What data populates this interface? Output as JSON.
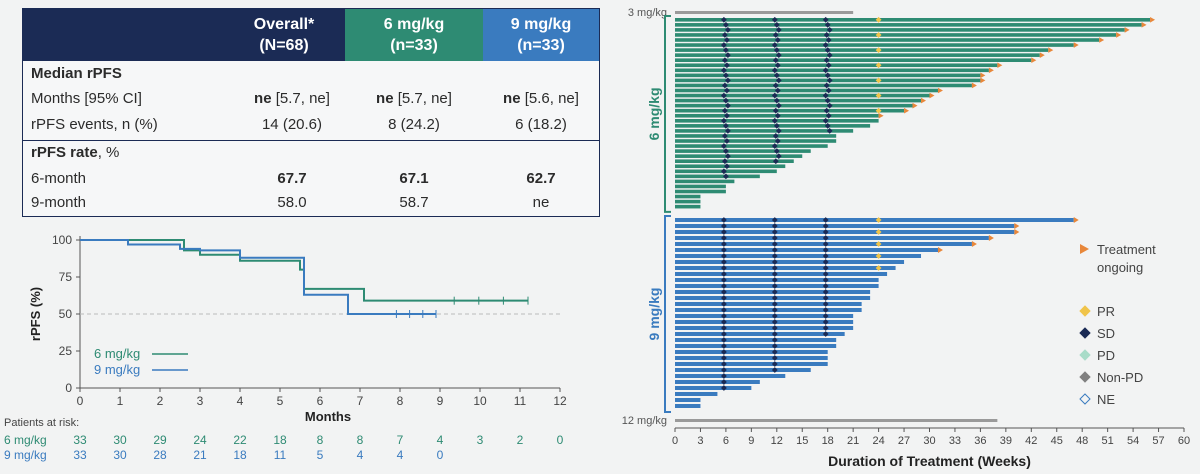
{
  "table": {
    "headers": [
      {
        "line1": "Overall*",
        "line2": "(N=68)",
        "color": "#1b2b55"
      },
      {
        "line1": "6 mg/kg",
        "line2": "(n=33)",
        "color": "#2e8b73"
      },
      {
        "line1": "9 mg/kg",
        "line2": "(n=33)",
        "color": "#3a7bbf"
      }
    ],
    "section1": "Median rPFS",
    "row_months": {
      "label": "Months [95% CI]",
      "v1b": "ne",
      "v1": " [5.7, ne]",
      "v2b": "ne",
      "v2": " [5.7, ne]",
      "v3b": "ne",
      "v3": " [5.6, ne]"
    },
    "row_events": {
      "label": "rPFS events, n (%)",
      "v1": "14 (20.6)",
      "v2": "8 (24.2)",
      "v3": "6 (18.2)"
    },
    "section2_bold": "rPFS rate",
    "section2_rest": ", %",
    "row_6m": {
      "label": "6-month",
      "v1": "67.7",
      "v2": "67.1",
      "v3": "62.7"
    },
    "row_9m": {
      "label": "9-month",
      "v1": "58.0",
      "v2": "58.7",
      "v3": "ne"
    }
  },
  "chart_data": [
    {
      "type": "line",
      "xlabel": "Months",
      "ylabel": "rPFS (%)",
      "xlim": [
        0,
        12
      ],
      "ylim": [
        0,
        100
      ],
      "xticks": [
        0,
        1,
        2,
        3,
        4,
        5,
        6,
        7,
        8,
        9,
        10,
        11,
        12
      ],
      "yticks": [
        0,
        25,
        50,
        75,
        100
      ],
      "reference_line": 50,
      "series": [
        {
          "name": "6 mg/kg",
          "color": "#2e8b73",
          "x": [
            0,
            2.6,
            2.6,
            3.0,
            3.0,
            4.0,
            4.0,
            5.5,
            5.5,
            5.6,
            5.6,
            7.1,
            7.1,
            11.2
          ],
          "y": [
            100,
            100,
            93,
            93,
            90,
            90,
            86,
            86,
            80,
            80,
            67,
            67,
            59,
            59
          ]
        },
        {
          "name": "9 mg/kg",
          "color": "#3a7bbf",
          "x": [
            0,
            1.2,
            1.2,
            2.5,
            2.5,
            3.0,
            3.0,
            4.0,
            4.0,
            5.6,
            5.6,
            6.7,
            6.7,
            8.9
          ],
          "y": [
            100,
            100,
            97,
            97,
            94,
            94,
            93,
            93,
            88,
            88,
            63,
            63,
            50,
            50
          ]
        }
      ],
      "risk_table": {
        "title": "Patients at risk:",
        "months": [
          0,
          1,
          2,
          3,
          4,
          5,
          6,
          7,
          8,
          9,
          10,
          11,
          12
        ],
        "rows": [
          {
            "name": "6 mg/kg",
            "values": [
              "33",
              "30",
              "29",
              "24",
              "22",
              "18",
              "8",
              "8",
              "7",
              "4",
              "3",
              "2",
              "0"
            ]
          },
          {
            "name": "9 mg/kg",
            "values": [
              "33",
              "30",
              "28",
              "21",
              "18",
              "11",
              "5",
              "4",
              "4",
              "0",
              "",
              "",
              ""
            ]
          }
        ]
      }
    },
    {
      "type": "bar",
      "orientation": "horizontal",
      "xlabel": "Duration of Treatment (Weeks)",
      "xlim": [
        0,
        60
      ],
      "xticks": [
        0,
        3,
        6,
        9,
        12,
        15,
        18,
        21,
        24,
        27,
        30,
        33,
        36,
        39,
        42,
        45,
        48,
        51,
        54,
        57,
        60
      ],
      "group_labels": [
        "3 mg/kg",
        "6 mg/kg",
        "9 mg/kg",
        "12 mg/kg"
      ],
      "groups": [
        {
          "name": "3 mg/kg",
          "color": "#9a9a9a",
          "durations": [
            21
          ]
        },
        {
          "name": "6 mg/kg",
          "color": "#2e8b73",
          "durations": [
            56,
            55,
            53,
            52,
            50,
            47,
            44,
            43,
            42,
            38,
            37,
            36,
            36,
            35,
            31,
            30,
            29,
            28,
            27,
            24,
            24,
            23,
            21,
            19,
            19,
            18,
            16,
            15,
            14,
            13,
            12,
            10,
            7,
            6,
            6,
            3,
            3,
            3
          ]
        },
        {
          "name": "9 mg/kg",
          "color": "#3a7bbf",
          "durations": [
            47,
            40,
            40,
            37,
            35,
            31,
            29,
            27,
            26,
            25,
            24,
            24,
            23,
            23,
            22,
            22,
            21,
            21,
            21,
            20,
            19,
            19,
            18,
            18,
            18,
            16,
            13,
            10,
            9,
            5,
            3,
            3
          ]
        },
        {
          "name": "12 mg/kg",
          "color": "#9a9a9a",
          "durations": [
            38
          ]
        }
      ],
      "legend": [
        {
          "label": "Treatment",
          "label2": "ongoing",
          "color": "#e8873a",
          "marker": "triangle"
        },
        {
          "label": "PR",
          "color": "#f0c44a",
          "marker": "diamond"
        },
        {
          "label": "SD",
          "color": "#1b2b55",
          "marker": "diamond"
        },
        {
          "label": "PD",
          "color": "#a8dcc8",
          "marker": "diamond"
        },
        {
          "label": "Non-PD",
          "color": "#808080",
          "marker": "diamond"
        },
        {
          "label": "NE",
          "color": "#3a7bbf",
          "marker": "diamond-open"
        }
      ]
    }
  ]
}
